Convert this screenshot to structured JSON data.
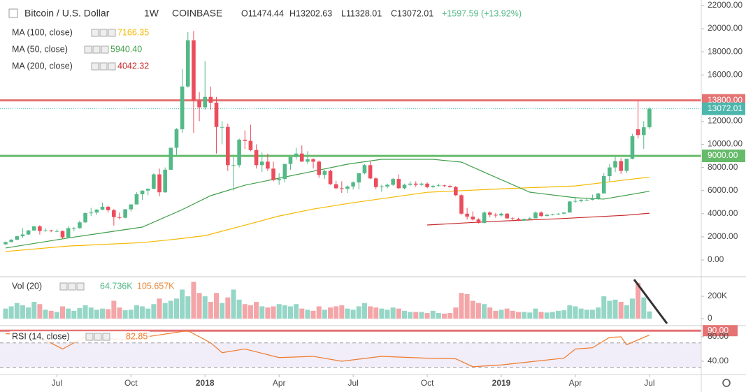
{
  "chart_data": {
    "type": "candlestick",
    "legend": {
      "symbol": "Bitcoin / U.S. Dollar",
      "interval": "1W",
      "exchange": "COINBASE",
      "open": "O11474.44",
      "high": "H13202.63",
      "low": "L11328.01",
      "close": "C13072.01",
      "change": "+1597.59 (+13.92%)"
    },
    "up_color": "#53b987",
    "down_color": "#eb4d5c",
    "xlim": [
      -0.98,
      122.09
    ],
    "ylim": [
      -1390,
      22480
    ],
    "xticks": [
      {
        "value": 9,
        "label": "Jul"
      },
      {
        "value": 22,
        "label": "Oct"
      },
      {
        "value": 35,
        "label": "2018"
      },
      {
        "value": 48,
        "label": "Apr"
      },
      {
        "value": 61,
        "label": "Jul"
      },
      {
        "value": 74,
        "label": "Oct"
      },
      {
        "value": 87,
        "label": "2019"
      },
      {
        "value": 100,
        "label": "Apr"
      },
      {
        "value": 113,
        "label": "Jul"
      }
    ],
    "yticks": [
      {
        "value": 0,
        "label": "0.00"
      },
      {
        "value": 2000,
        "label": "2000.00"
      },
      {
        "value": 4000,
        "label": "4000.00"
      },
      {
        "value": 6000,
        "label": "6000.00"
      },
      {
        "value": 8000,
        "label": "8000.00"
      },
      {
        "value": 10000,
        "label": "10000.00"
      },
      {
        "value": 12000,
        "label": "12000.00"
      },
      {
        "value": 14000,
        "label": "14000.00"
      },
      {
        "value": 16000,
        "label": "16000.00"
      },
      {
        "value": 18000,
        "label": "18000.00"
      },
      {
        "value": 20000,
        "label": "20000.00"
      },
      {
        "value": 22000,
        "label": "22000.00"
      }
    ],
    "levels": [
      {
        "value": 13800,
        "label": "13800.00",
        "color": "#e57373"
      },
      {
        "value": 9000,
        "label": "9000.00",
        "color": "#66bb6a"
      }
    ],
    "last": {
      "value": 13072.01,
      "label": "13072.01",
      "color": "#4db6ac"
    },
    "candles": [
      [
        1350,
        1600,
        1300,
        1550
      ],
      [
        1550,
        1800,
        1520,
        1750
      ],
      [
        1750,
        2100,
        1700,
        2050
      ],
      [
        2050,
        2750,
        1900,
        2200
      ],
      [
        2200,
        2600,
        2150,
        2550
      ],
      [
        2550,
        2950,
        2500,
        2900
      ],
      [
        2900,
        3000,
        2200,
        2500
      ],
      [
        2500,
        2750,
        2450,
        2550
      ],
      [
        2550,
        2600,
        2400,
        2500
      ],
      [
        2500,
        2650,
        2400,
        2500
      ],
      [
        2500,
        2550,
        1850,
        1950
      ],
      [
        1950,
        2900,
        1900,
        2750
      ],
      [
        2750,
        2850,
        2500,
        2750
      ],
      [
        2750,
        3400,
        2700,
        3250
      ],
      [
        3250,
        4100,
        3200,
        4050
      ],
      [
        4050,
        4500,
        3800,
        4100
      ],
      [
        4100,
        4400,
        3900,
        4350
      ],
      [
        4350,
        4950,
        4300,
        4600
      ],
      [
        4600,
        4700,
        4100,
        4300
      ],
      [
        4300,
        4400,
        2970,
        3700
      ],
      [
        3700,
        4100,
        3500,
        3650
      ],
      [
        3650,
        4400,
        3600,
        4380
      ],
      [
        4380,
        4800,
        4200,
        4800
      ],
      [
        4800,
        5850,
        4800,
        5680
      ],
      [
        5680,
        6000,
        5200,
        6000
      ],
      [
        6000,
        6200,
        5600,
        6150
      ],
      [
        6150,
        7500,
        6100,
        7400
      ],
      [
        7400,
        7900,
        5500,
        5850
      ],
      [
        5850,
        8000,
        5800,
        7800
      ],
      [
        7800,
        9700,
        7800,
        9700
      ],
      [
        9700,
        11400,
        9000,
        11300
      ],
      [
        11300,
        16500,
        11000,
        15000
      ],
      [
        15000,
        19700,
        14900,
        19000
      ],
      [
        19000,
        19800,
        11000,
        13800
      ],
      [
        13800,
        14500,
        12000,
        13200
      ],
      [
        13200,
        17200,
        13000,
        14100
      ],
      [
        14100,
        15000,
        13000,
        13600
      ],
      [
        13600,
        14100,
        9200,
        11500
      ],
      [
        11500,
        12000,
        10000,
        11500
      ],
      [
        11500,
        11800,
        7700,
        8200
      ],
      [
        8200,
        8900,
        6000,
        8200
      ],
      [
        8200,
        10500,
        8000,
        10400
      ],
      [
        10400,
        11200,
        9600,
        10300
      ],
      [
        10300,
        11700,
        9400,
        9500
      ],
      [
        9500,
        10000,
        7900,
        8200
      ],
      [
        8200,
        9300,
        7600,
        8500
      ],
      [
        8500,
        9200,
        7700,
        7900
      ],
      [
        7900,
        8500,
        6800,
        6900
      ],
      [
        6900,
        7500,
        6500,
        7000
      ],
      [
        7000,
        8300,
        6700,
        8300
      ],
      [
        8300,
        8900,
        7800,
        8900
      ],
      [
        8900,
        9700,
        8700,
        9200
      ],
      [
        9200,
        9900,
        8500,
        8500
      ],
      [
        8500,
        9400,
        8300,
        8700
      ],
      [
        8700,
        8800,
        7900,
        8500
      ],
      [
        8500,
        8600,
        7100,
        7350
      ],
      [
        7350,
        7800,
        7000,
        7700
      ],
      [
        7700,
        7800,
        6500,
        6550
      ],
      [
        6550,
        6850,
        6100,
        6200
      ],
      [
        6200,
        6800,
        5800,
        6150
      ],
      [
        6150,
        6450,
        5800,
        6350
      ],
      [
        6350,
        6800,
        6100,
        6700
      ],
      [
        6700,
        7500,
        6100,
        7500
      ],
      [
        7500,
        8300,
        7400,
        8200
      ],
      [
        8200,
        8500,
        7000,
        7050
      ],
      [
        7050,
        7150,
        6100,
        6300
      ],
      [
        6300,
        6500,
        5900,
        6350
      ],
      [
        6350,
        6600,
        6200,
        6500
      ],
      [
        6500,
        7100,
        6400,
        7000
      ],
      [
        7000,
        7400,
        6150,
        6200
      ],
      [
        6200,
        6600,
        6100,
        6500
      ],
      [
        6500,
        6800,
        6400,
        6600
      ],
      [
        6600,
        6800,
        6300,
        6500
      ],
      [
        6500,
        6700,
        6400,
        6600
      ],
      [
        6600,
        6700,
        6200,
        6300
      ],
      [
        6300,
        6500,
        6200,
        6400
      ],
      [
        6400,
        6600,
        6350,
        6450
      ],
      [
        6450,
        6500,
        6300,
        6400
      ],
      [
        6400,
        6500,
        6250,
        6300
      ],
      [
        6300,
        6400,
        5500,
        5600
      ],
      [
        5600,
        5700,
        3900,
        4000
      ],
      [
        4000,
        4500,
        3500,
        3750
      ],
      [
        3750,
        4200,
        3400,
        3500
      ],
      [
        3500,
        3600,
        3150,
        3200
      ],
      [
        3200,
        4200,
        3150,
        4100
      ],
      [
        4100,
        4200,
        3700,
        3900
      ],
      [
        3900,
        4050,
        3650,
        3850
      ],
      [
        3850,
        4100,
        3750,
        4000
      ],
      [
        4000,
        4050,
        3550,
        3600
      ],
      [
        3600,
        3700,
        3450,
        3550
      ],
      [
        3550,
        3650,
        3350,
        3400
      ],
      [
        3400,
        3600,
        3350,
        3550
      ],
      [
        3550,
        3700,
        3450,
        3600
      ],
      [
        3600,
        4200,
        3600,
        4100
      ],
      [
        4100,
        4200,
        3700,
        3800
      ],
      [
        3800,
        4000,
        3750,
        3900
      ],
      [
        3900,
        4000,
        3850,
        3950
      ],
      [
        3950,
        4050,
        3900,
        4000
      ],
      [
        4000,
        4100,
        3950,
        4100
      ],
      [
        4100,
        5100,
        4100,
        5050
      ],
      [
        5050,
        5450,
        4950,
        5100
      ],
      [
        5100,
        5250,
        5000,
        5200
      ],
      [
        5200,
        5400,
        5150,
        5200
      ],
      [
        5200,
        5650,
        5150,
        5300
      ],
      [
        5300,
        5800,
        5200,
        5750
      ],
      [
        5750,
        7500,
        5750,
        7250
      ],
      [
        7250,
        8300,
        6800,
        8000
      ],
      [
        8000,
        8900,
        7600,
        8550
      ],
      [
        8550,
        8800,
        7450,
        7700
      ],
      [
        7700,
        8750,
        7500,
        8750
      ],
      [
        8750,
        10900,
        8700,
        10700
      ],
      [
        11300,
        13800,
        10500,
        10800
      ],
      [
        10800,
        12000,
        9600,
        11474
      ],
      [
        11474.44,
        13202.63,
        11328.01,
        13072.01
      ]
    ],
    "series": [
      {
        "name": "MA (100, close)",
        "value_label": "7166.35",
        "color": "#f5b800",
        "x": [
          0,
          11,
          24,
          30,
          35,
          42,
          48,
          54,
          61,
          74,
          87,
          100,
          113
        ],
        "values": [
          730,
          1200,
          1500,
          1800,
          2100,
          3000,
          3800,
          4400,
          4950,
          5850,
          6150,
          6400,
          7166.35
        ]
      },
      {
        "name": "MA (50, close)",
        "value_label": "5940.40",
        "color": "#3f9e48",
        "x": [
          0,
          11,
          24,
          31,
          36,
          42,
          48,
          54,
          60,
          66,
          75,
          80,
          85,
          92,
          100,
          105,
          113
        ],
        "values": [
          1030,
          1900,
          2840,
          4350,
          5560,
          6460,
          7070,
          7670,
          8280,
          8700,
          8700,
          8460,
          7370,
          5860,
          5380,
          5260,
          5940.4
        ]
      },
      {
        "name": "MA (200, close)",
        "value_label": "4042.32",
        "color": "#c62828",
        "x": [
          74,
          85,
          97,
          109,
          113
        ],
        "values": [
          3020,
          3320,
          3560,
          3870,
          4042.32
        ]
      }
    ],
    "volume": {
      "name": "Vol (20)",
      "value_label": "64.736K",
      "ma_label": "105.657K",
      "up_color": "#95d6c6",
      "down_color": "#f4a5a8",
      "ma_color": "#e8893a",
      "ylim": [
        -56,
        369
      ],
      "yticks": [
        0,
        {
          "value": 200,
          "label": "200K"
        }
      ],
      "values": [
        90,
        110,
        140,
        120,
        100,
        150,
        130,
        80,
        70,
        60,
        110,
        90,
        70,
        95,
        120,
        100,
        80,
        90,
        85,
        160,
        100,
        75,
        80,
        120,
        110,
        90,
        130,
        180,
        140,
        160,
        180,
        260,
        200,
        330,
        230,
        200,
        150,
        230,
        140,
        190,
        260,
        170,
        130,
        120,
        150,
        110,
        100,
        110,
        130,
        120,
        110,
        130,
        90,
        80,
        70,
        110,
        80,
        100,
        110,
        120,
        90,
        80,
        110,
        140,
        110,
        100,
        90,
        80,
        100,
        90,
        70,
        60,
        60,
        60,
        50,
        70,
        50,
        45,
        50,
        100,
        230,
        220,
        160,
        140,
        130,
        100,
        70,
        80,
        90,
        70,
        60,
        60,
        55,
        90,
        60,
        55,
        60,
        70,
        75,
        120,
        110,
        90,
        80,
        80,
        100,
        200,
        160,
        170,
        150,
        120,
        180,
        320,
        190,
        64.736
      ]
    },
    "rsi": {
      "name": "RSI (14, close)",
      "value_label": "82.85",
      "color": "#f07b2a",
      "ylim": [
        19.4,
        97.1
      ],
      "yticks": [
        {
          "value": 40,
          "label": "40.00"
        },
        {
          "value": 80,
          "label": "80.00"
        }
      ],
      "band": [
        30,
        70
      ],
      "level": {
        "value": 90,
        "label": "90.00",
        "color": "#e57373"
      },
      "x": [
        0,
        5,
        10,
        14,
        21,
        27,
        32,
        36,
        38,
        42,
        48,
        54,
        59,
        66,
        74,
        79,
        82,
        87,
        92,
        98,
        100,
        103,
        106,
        108,
        109,
        113
      ],
      "values": [
        85,
        84,
        60,
        80,
        75,
        83,
        90,
        70,
        54,
        60,
        46,
        48,
        40,
        48,
        45,
        44,
        31,
        34,
        39,
        45,
        60,
        62,
        79,
        80,
        67,
        82.85
      ]
    }
  }
}
